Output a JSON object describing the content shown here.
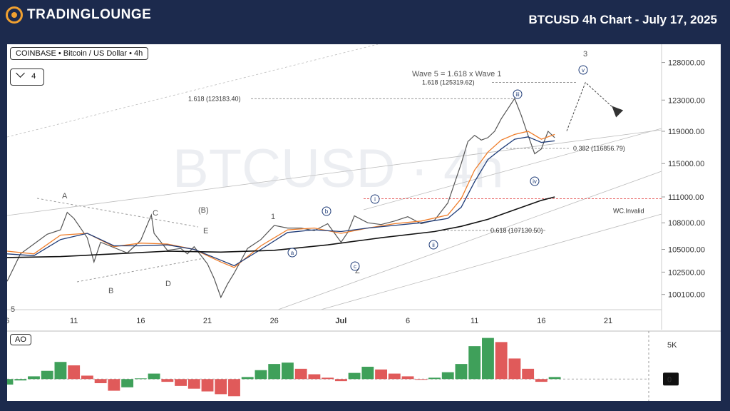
{
  "header": {
    "brand": "TradingLounge",
    "logo_text": "TRADINGLOUNGE",
    "title": "BTCUSD 4h Chart - July 17, 2025",
    "accent_color": "#f0a030",
    "background_color": "#1c2a4d"
  },
  "legend": {
    "symbol_line": "COINBASE • Bitcoin / US Dollar • 4h",
    "collapse_icon": "chevron-down-icon",
    "indicator_count": "4"
  },
  "watermark": "BTCUSD · 4h",
  "chart_data": {
    "type": "line",
    "title": "BTCUSD 4h Chart - July 17, 2025",
    "y_scale": "log",
    "ylim": [
      98500,
      130500
    ],
    "y_ticks": [
      "128000.00",
      "123000.00",
      "119000.00",
      "115000.00",
      "111000.00",
      "108000.00",
      "105000.00",
      "102500.00",
      "100100.00"
    ],
    "y_tick_values": [
      128000,
      123000,
      119000,
      115000,
      111000,
      108000,
      105000,
      102500,
      100100
    ],
    "x_ticks": [
      "6",
      "11",
      "16",
      "21",
      "26",
      "Jul",
      "6",
      "11",
      "16",
      "21"
    ],
    "x_tick_days": [
      6,
      11,
      16,
      21,
      26,
      31,
      36,
      41,
      46,
      51
    ],
    "x_range_days": [
      6,
      55
    ],
    "series": [
      {
        "name": "Price (BTCUSD 4h)",
        "color": "#555555",
        "x": [
          6,
          7,
          8,
          9,
          10,
          10.5,
          11,
          12,
          12.5,
          13,
          14,
          15,
          16,
          16.8,
          17,
          18,
          19,
          19.5,
          20,
          21,
          21.5,
          22,
          22.5,
          23,
          24,
          25,
          26,
          27,
          28,
          29,
          30,
          31,
          31.5,
          32,
          33,
          34,
          35,
          36,
          37,
          38,
          39,
          40,
          40.5,
          41,
          41.5,
          42,
          42.5,
          43,
          44,
          44.5,
          45,
          45.5,
          46,
          46.5,
          47
        ],
        "y": [
          101500,
          104500,
          105600,
          106700,
          107200,
          109200,
          108500,
          106300,
          103600,
          105800,
          105200,
          104600,
          106000,
          108900,
          106800,
          104900,
          105100,
          104500,
          105300,
          103400,
          101800,
          99800,
          101200,
          102400,
          105100,
          106100,
          107700,
          107400,
          107400,
          107100,
          107900,
          105800,
          106900,
          108800,
          108000,
          107800,
          108200,
          108700,
          107900,
          108300,
          110300,
          115000,
          117700,
          118500,
          117900,
          118200,
          119000,
          120600,
          123200,
          121000,
          118500,
          116200,
          116800,
          119000,
          118200
        ]
      },
      {
        "name": "Fast MA",
        "color": "#ef7d2a",
        "x": [
          6,
          8,
          10,
          12,
          14,
          16,
          18,
          20,
          22,
          23,
          25,
          27,
          29,
          31,
          33,
          35,
          37,
          39,
          40,
          41,
          42,
          43,
          44,
          45,
          46,
          47
        ],
        "y": [
          104800,
          104500,
          106600,
          106800,
          105300,
          105700,
          105600,
          105000,
          103600,
          103000,
          105400,
          107200,
          107400,
          106800,
          107400,
          107900,
          108200,
          108900,
          110800,
          114200,
          116400,
          117900,
          118600,
          119000,
          118000,
          118600
        ]
      },
      {
        "name": "Medium MA",
        "color": "#1f3c78",
        "x": [
          6,
          8,
          10,
          12,
          14,
          16,
          18,
          20,
          22,
          23,
          25,
          27,
          29,
          31,
          33,
          35,
          37,
          39,
          40,
          41,
          42,
          43,
          44,
          45,
          46,
          47
        ],
        "y": [
          104500,
          104300,
          106100,
          106800,
          105400,
          105400,
          105500,
          105000,
          103800,
          103200,
          105000,
          106900,
          107200,
          107000,
          107400,
          107700,
          108000,
          108500,
          109800,
          112800,
          115500,
          116800,
          118000,
          118300,
          117600,
          117800
        ]
      },
      {
        "name": "Slow MA",
        "color": "#111111",
        "x": [
          6,
          10,
          14,
          18,
          22,
          26,
          30,
          34,
          38,
          40,
          42,
          44,
          46,
          47
        ],
        "y": [
          104100,
          104200,
          104500,
          104800,
          104700,
          104900,
          105500,
          106300,
          107000,
          107600,
          108400,
          109500,
          110600,
          111000
        ]
      }
    ],
    "levels": [
      {
        "label": "1.618 (123183.40)",
        "value": 123183.4
      },
      {
        "label": "1.618 (125319.62)",
        "value": 125319.62
      },
      {
        "label": "0.382 (116856.79)",
        "value": 116856.79
      },
      {
        "label": "0.618 (107130.50)",
        "value": 107130.5
      },
      {
        "label": "WC.Invalid",
        "value": 110800,
        "color": "#e03030"
      }
    ],
    "annotations": [
      {
        "label": "Wave 5 = 1.618 x Wave 1",
        "color": "#ef7d2a"
      },
      {
        "label": "A"
      },
      {
        "label": "B"
      },
      {
        "label": "C"
      },
      {
        "label": "D"
      },
      {
        "label": "E"
      },
      {
        "label": "5"
      },
      {
        "label": "(B)",
        "color": "#ef7d2a"
      },
      {
        "label": "1"
      },
      {
        "label": "Z"
      },
      {
        "label": "3"
      },
      {
        "label": "a"
      },
      {
        "label": "b"
      },
      {
        "label": "c"
      },
      {
        "label": "i"
      },
      {
        "label": "ii"
      },
      {
        "label": "iii"
      },
      {
        "label": "iv"
      },
      {
        "label": "v"
      }
    ],
    "projection": [
      {
        "x": 47.9,
        "y": 118500
      },
      {
        "x": 49.3,
        "y": 125319.62
      },
      {
        "x": 51.7,
        "y": 121500
      }
    ]
  },
  "ao_panel": {
    "label": "AO",
    "y_ticks": [
      "5K",
      "0"
    ],
    "y_tick_values": [
      5000,
      0
    ],
    "ylim": [
      -3200,
      7000
    ],
    "up_color": "#3fa05a",
    "down_color": "#e05a5a",
    "chart_data": {
      "type": "bar",
      "x": [
        6,
        7,
        8,
        9,
        10,
        11,
        12,
        13,
        14,
        15,
        16,
        17,
        18,
        19,
        20,
        21,
        22,
        23,
        24,
        25,
        26,
        27,
        28,
        29,
        30,
        31,
        32,
        33,
        34,
        35,
        36,
        37,
        38,
        39,
        40,
        41,
        42,
        43,
        44,
        45,
        46,
        47
      ],
      "values": [
        -800,
        -200,
        400,
        1200,
        2500,
        2000,
        500,
        -600,
        -1700,
        -1200,
        100,
        800,
        -400,
        -1000,
        -1400,
        -1800,
        -2200,
        -2500,
        300,
        1300,
        2200,
        2400,
        1500,
        700,
        200,
        -300,
        900,
        1800,
        1400,
        800,
        400,
        -100,
        200,
        1000,
        2200,
        4800,
        6000,
        5400,
        3000,
        1500,
        -400,
        300
      ]
    }
  }
}
